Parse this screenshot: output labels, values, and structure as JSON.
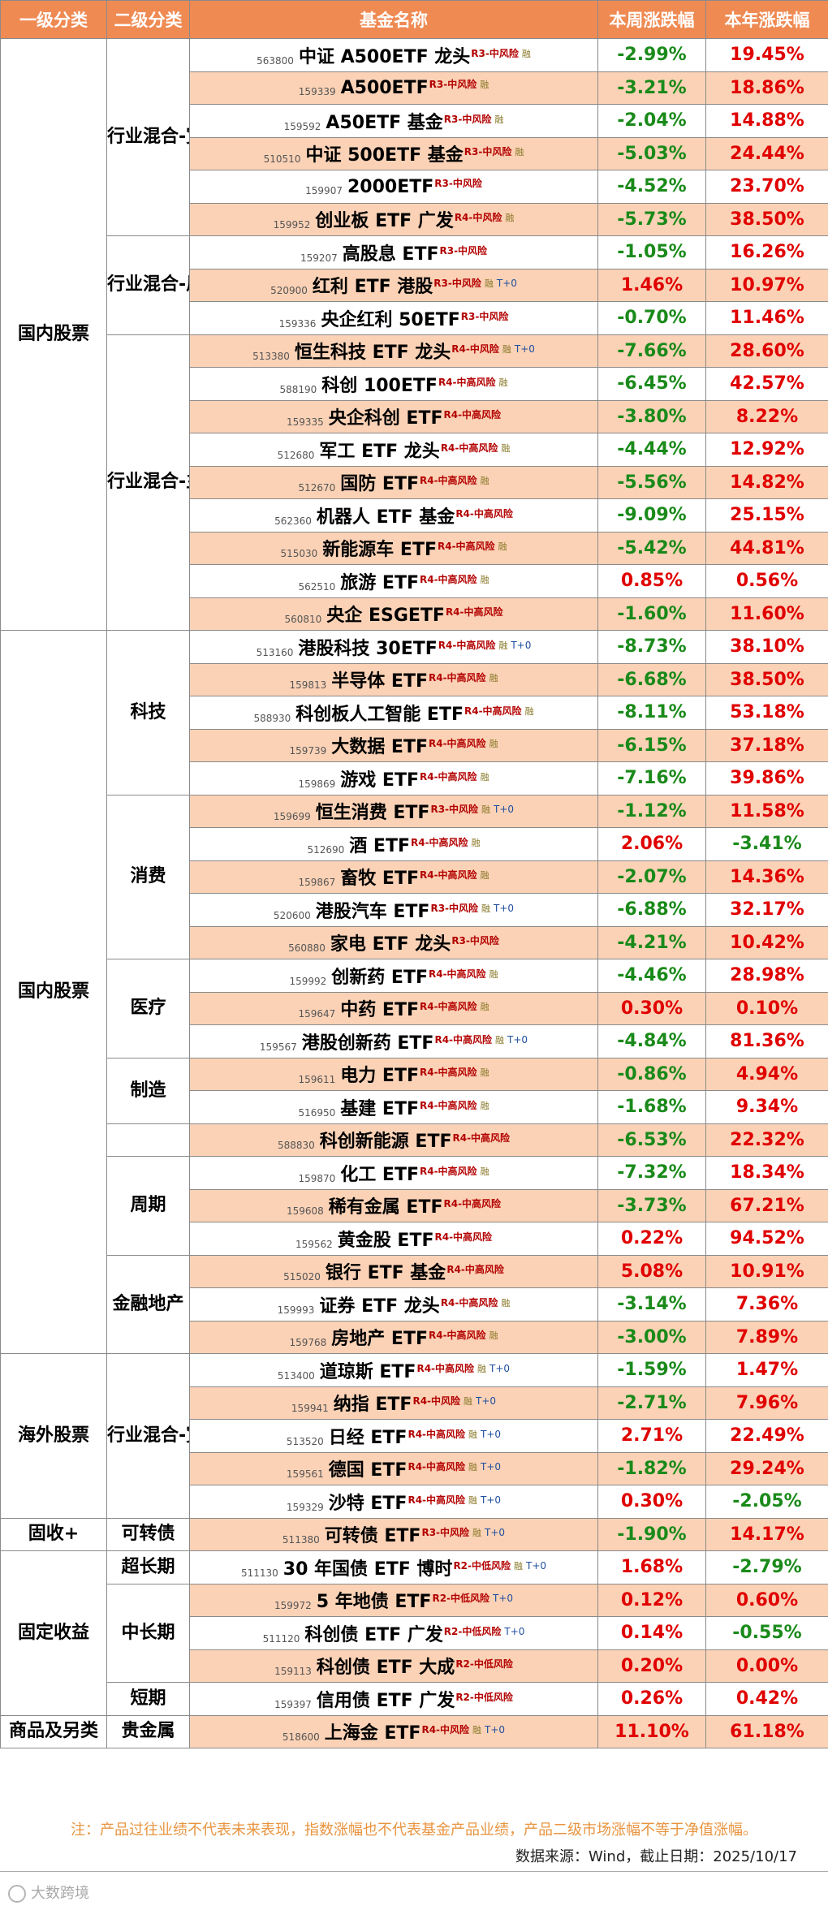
{
  "header": {
    "level1": "一级分类",
    "level2": "二级分类",
    "name": "基金名称",
    "weekly": "本周涨跌幅",
    "ytd": "本年涨跌幅"
  },
  "groups": [
    {
      "level1": "国内股票",
      "subs": [
        {
          "level2": "行业混合-宽基",
          "rows": [
            {
              "code": "563800",
              "name": "中证 A500ETF 龙头",
              "risk": "R3-中风险",
              "rong": "融",
              "t0": "",
              "weekly": "-2.99%",
              "ytd": "19.45%"
            },
            {
              "code": "159339",
              "name": "A500ETF",
              "risk": "R3-中风险",
              "rong": "融",
              "t0": "",
              "weekly": "-3.21%",
              "ytd": "18.86%"
            },
            {
              "code": "159592",
              "name": "A50ETF 基金",
              "risk": "R3-中风险",
              "rong": "融",
              "t0": "",
              "weekly": "-2.04%",
              "ytd": "14.88%"
            },
            {
              "code": "510510",
              "name": "中证 500ETF 基金",
              "risk": "R3-中风险",
              "rong": "融",
              "t0": "",
              "weekly": "-5.03%",
              "ytd": "24.44%"
            },
            {
              "code": "159907",
              "name": "2000ETF",
              "risk": "R3-中风险",
              "rong": "",
              "t0": "",
              "weekly": "-4.52%",
              "ytd": "23.70%"
            },
            {
              "code": "159952",
              "name": "创业板 ETF 广发",
              "risk": "R4-中风险",
              "rong": "融",
              "t0": "",
              "weekly": "-5.73%",
              "ytd": "38.50%"
            }
          ]
        },
        {
          "level2": "行业混合-风格",
          "rows": [
            {
              "code": "159207",
              "name": "高股息 ETF",
              "risk": "R3-中风险",
              "rong": "",
              "t0": "",
              "weekly": "-1.05%",
              "ytd": "16.26%"
            },
            {
              "code": "520900",
              "name": "红利 ETF 港股",
              "risk": "R3-中风险",
              "rong": "融",
              "t0": "T+0",
              "weekly": "1.46%",
              "ytd": "10.97%"
            },
            {
              "code": "159336",
              "name": "央企红利 50ETF",
              "risk": "R3-中风险",
              "rong": "",
              "t0": "",
              "weekly": "-0.70%",
              "ytd": "11.46%"
            }
          ]
        },
        {
          "level2": "行业混合-主题",
          "rows": [
            {
              "code": "513380",
              "name": "恒生科技 ETF 龙头",
              "risk": "R4-中风险",
              "rong": "融",
              "t0": "T+0",
              "weekly": "-7.66%",
              "ytd": "28.60%"
            },
            {
              "code": "588190",
              "name": "科创 100ETF",
              "risk": "R4-中高风险",
              "rong": "融",
              "t0": "",
              "weekly": "-6.45%",
              "ytd": "42.57%"
            },
            {
              "code": "159335",
              "name": "央企科创 ETF",
              "risk": "R4-中高风险",
              "rong": "",
              "t0": "",
              "weekly": "-3.80%",
              "ytd": "8.22%"
            },
            {
              "code": "512680",
              "name": "军工 ETF 龙头",
              "risk": "R4-中高风险",
              "rong": "融",
              "t0": "",
              "weekly": "-4.44%",
              "ytd": "12.92%"
            },
            {
              "code": "512670",
              "name": "国防 ETF",
              "risk": "R4-中高风险",
              "rong": "融",
              "t0": "",
              "weekly": "-5.56%",
              "ytd": "14.82%"
            },
            {
              "code": "562360",
              "name": "机器人 ETF 基金",
              "risk": "R4-中高风险",
              "rong": "",
              "t0": "",
              "weekly": "-9.09%",
              "ytd": "25.15%"
            },
            {
              "code": "515030",
              "name": "新能源车 ETF",
              "risk": "R4-中高风险",
              "rong": "融",
              "t0": "",
              "weekly": "-5.42%",
              "ytd": "44.81%"
            },
            {
              "code": "562510",
              "name": "旅游 ETF",
              "risk": "R4-中高风险",
              "rong": "融",
              "t0": "",
              "weekly": "0.85%",
              "ytd": "0.56%"
            },
            {
              "code": "560810",
              "name": "央企 ESGETF",
              "risk": "R4-中高风险",
              "rong": "",
              "t0": "",
              "weekly": "-1.60%",
              "ytd": "11.60%"
            }
          ]
        }
      ]
    },
    {
      "level1": "国内股票",
      "subs": [
        {
          "level2": "科技",
          "rows": [
            {
              "code": "513160",
              "name": "港股科技 30ETF",
              "risk": "R4-中高风险",
              "rong": "融",
              "t0": "T+0",
              "weekly": "-8.73%",
              "ytd": "38.10%"
            },
            {
              "code": "159813",
              "name": "半导体 ETF",
              "risk": "R4-中高风险",
              "rong": "融",
              "t0": "",
              "weekly": "-6.68%",
              "ytd": "38.50%"
            },
            {
              "code": "588930",
              "name": "科创板人工智能 ETF",
              "risk": "R4-中高风险",
              "rong": "融",
              "t0": "",
              "weekly": "-8.11%",
              "ytd": "53.18%"
            },
            {
              "code": "159739",
              "name": "大数据 ETF",
              "risk": "R4-中高风险",
              "rong": "融",
              "t0": "",
              "weekly": "-6.15%",
              "ytd": "37.18%"
            },
            {
              "code": "159869",
              "name": "游戏 ETF",
              "risk": "R4-中高风险",
              "rong": "融",
              "t0": "",
              "weekly": "-7.16%",
              "ytd": "39.86%"
            }
          ]
        },
        {
          "level2": "消费",
          "rows": [
            {
              "code": "159699",
              "name": "恒生消费 ETF",
              "risk": "R3-中风险",
              "rong": "融",
              "t0": "T+0",
              "weekly": "-1.12%",
              "ytd": "11.58%"
            },
            {
              "code": "512690",
              "name": "酒 ETF",
              "risk": "R4-中高风险",
              "rong": "融",
              "t0": "",
              "weekly": "2.06%",
              "ytd": "-3.41%"
            },
            {
              "code": "159867",
              "name": "畜牧 ETF",
              "risk": "R4-中高风险",
              "rong": "融",
              "t0": "",
              "weekly": "-2.07%",
              "ytd": "14.36%"
            },
            {
              "code": "520600",
              "name": "港股汽车 ETF",
              "risk": "R3-中风险",
              "rong": "融",
              "t0": "T+0",
              "weekly": "-6.88%",
              "ytd": "32.17%"
            },
            {
              "code": "560880",
              "name": "家电 ETF 龙头",
              "risk": "R3-中风险",
              "rong": "",
              "t0": "",
              "weekly": "-4.21%",
              "ytd": "10.42%"
            }
          ]
        },
        {
          "level2": "医疗",
          "rows": [
            {
              "code": "159992",
              "name": "创新药 ETF",
              "risk": "R4-中高风险",
              "rong": "融",
              "t0": "",
              "weekly": "-4.46%",
              "ytd": "28.98%"
            },
            {
              "code": "159647",
              "name": "中药 ETF",
              "risk": "R4-中高风险",
              "rong": "融",
              "t0": "",
              "weekly": "0.30%",
              "ytd": "0.10%"
            },
            {
              "code": "159567",
              "name": "港股创新药 ETF",
              "risk": "R4-中高风险",
              "rong": "融",
              "t0": "T+0",
              "weekly": "-4.84%",
              "ytd": "81.36%"
            }
          ]
        },
        {
          "level2": "制造",
          "rows": [
            {
              "code": "159611",
              "name": "电力 ETF",
              "risk": "R4-中高风险",
              "rong": "融",
              "t0": "",
              "weekly": "-0.86%",
              "ytd": "4.94%"
            },
            {
              "code": "516950",
              "name": "基建 ETF",
              "risk": "R4-中高风险",
              "rong": "融",
              "t0": "",
              "weekly": "-1.68%",
              "ytd": "9.34%"
            }
          ]
        },
        {
          "level2": "",
          "rows": [
            {
              "code": "588830",
              "name": "科创新能源 ETF",
              "risk": "R4-中高风险",
              "rong": "",
              "t0": "",
              "weekly": "-6.53%",
              "ytd": "22.32%"
            }
          ]
        },
        {
          "level2": "周期",
          "rows": [
            {
              "code": "159870",
              "name": "化工 ETF",
              "risk": "R4-中高风险",
              "rong": "融",
              "t0": "",
              "weekly": "-7.32%",
              "ytd": "18.34%"
            },
            {
              "code": "159608",
              "name": "稀有金属 ETF",
              "risk": "R4-中高风险",
              "rong": "",
              "t0": "",
              "weekly": "-3.73%",
              "ytd": "67.21%"
            },
            {
              "code": "159562",
              "name": "黄金股 ETF",
              "risk": "R4-中高风险",
              "rong": "",
              "t0": "",
              "weekly": "0.22%",
              "ytd": "94.52%"
            }
          ]
        },
        {
          "level2": "金融地产",
          "rows": [
            {
              "code": "515020",
              "name": "银行 ETF 基金",
              "risk": "R4-中高风险",
              "rong": "",
              "t0": "",
              "weekly": "5.08%",
              "ytd": "10.91%"
            },
            {
              "code": "159993",
              "name": "证券 ETF 龙头",
              "risk": "R4-中高风险",
              "rong": "融",
              "t0": "",
              "weekly": "-3.14%",
              "ytd": "7.36%"
            },
            {
              "code": "159768",
              "name": "房地产 ETF",
              "risk": "R4-中高风险",
              "rong": "融",
              "t0": "",
              "weekly": "-3.00%",
              "ytd": "7.89%"
            }
          ]
        }
      ]
    },
    {
      "level1": "海外股票",
      "subs": [
        {
          "level2": "行业混合-宽基",
          "rows": [
            {
              "code": "513400",
              "name": "道琼斯 ETF",
              "risk": "R4-中高风险",
              "rong": "融",
              "t0": "T+0",
              "weekly": "-1.59%",
              "ytd": "1.47%"
            },
            {
              "code": "159941",
              "name": "纳指 ETF",
              "risk": "R4-中风险",
              "rong": "融",
              "t0": "T+0",
              "weekly": "-2.71%",
              "ytd": "7.96%"
            },
            {
              "code": "513520",
              "name": "日经 ETF",
              "risk": "R4-中高风险",
              "rong": "融",
              "t0": "T+0",
              "weekly": "2.71%",
              "ytd": "22.49%"
            },
            {
              "code": "159561",
              "name": "德国 ETF",
              "risk": "R4-中高风险",
              "rong": "融",
              "t0": "T+0",
              "weekly": "-1.82%",
              "ytd": "29.24%"
            },
            {
              "code": "159329",
              "name": "沙特 ETF",
              "risk": "R4-中高风险",
              "rong": "融",
              "t0": "T+0",
              "weekly": "0.30%",
              "ytd": "-2.05%"
            }
          ]
        }
      ]
    },
    {
      "level1": "固收+",
      "subs": [
        {
          "level2": "可转债",
          "rows": [
            {
              "code": "511380",
              "name": "可转债 ETF",
              "risk": "R3-中风险",
              "rong": "融",
              "t0": "T+0",
              "weekly": "-1.90%",
              "ytd": "14.17%"
            }
          ]
        }
      ]
    },
    {
      "level1": "固定收益",
      "subs": [
        {
          "level2": "超长期",
          "rows": [
            {
              "code": "511130",
              "name": "30 年国债 ETF 博时",
              "risk": "R2-中低风险",
              "rong": "融",
              "t0": "T+0",
              "weekly": "1.68%",
              "ytd": "-2.79%"
            }
          ]
        },
        {
          "level2": "中长期",
          "rows": [
            {
              "code": "159972",
              "name": "5 年地债 ETF",
              "risk": "R2-中低风险",
              "rong": "",
              "t0": "T+0",
              "weekly": "0.12%",
              "ytd": "0.60%"
            },
            {
              "code": "511120",
              "name": "科创债 ETF 广发",
              "risk": "R2-中低风险",
              "rong": "",
              "t0": "T+0",
              "weekly": "0.14%",
              "ytd": "-0.55%"
            },
            {
              "code": "159113",
              "name": "科创债 ETF 大成",
              "risk": "R2-中低风险",
              "rong": "",
              "t0": "",
              "weekly": "0.20%",
              "ytd": "0.00%"
            }
          ]
        },
        {
          "level2": "短期",
          "rows": [
            {
              "code": "159397",
              "name": "信用债 ETF 广发",
              "risk": "R2-中低风险",
              "rong": "",
              "t0": "",
              "weekly": "0.26%",
              "ytd": "0.42%"
            }
          ]
        }
      ]
    },
    {
      "level1": "商品及另类",
      "subs": [
        {
          "level2": "贵金属",
          "rows": [
            {
              "code": "518600",
              "name": "上海金 ETF",
              "risk": "R4-中风险",
              "rong": "融",
              "t0": "T+0",
              "weekly": "11.10%",
              "ytd": "61.18%"
            }
          ]
        }
      ]
    }
  ],
  "footnote": "注：产品过往业绩不代表未来表现，指数涨幅也不代表基金产品业绩，产品二级市场涨幅不等于净值涨幅。",
  "source": "数据来源：Wind，截止日期：2025/10/17",
  "logo_text": "大数跨境",
  "colors": {
    "header_bg": "#ef8a53",
    "row_alt": "#fbd2b6",
    "positive": "#e00000",
    "negative": "#1a8a1a",
    "risk_tag": "#b30000",
    "t0_tag": "#1f4e9f"
  }
}
